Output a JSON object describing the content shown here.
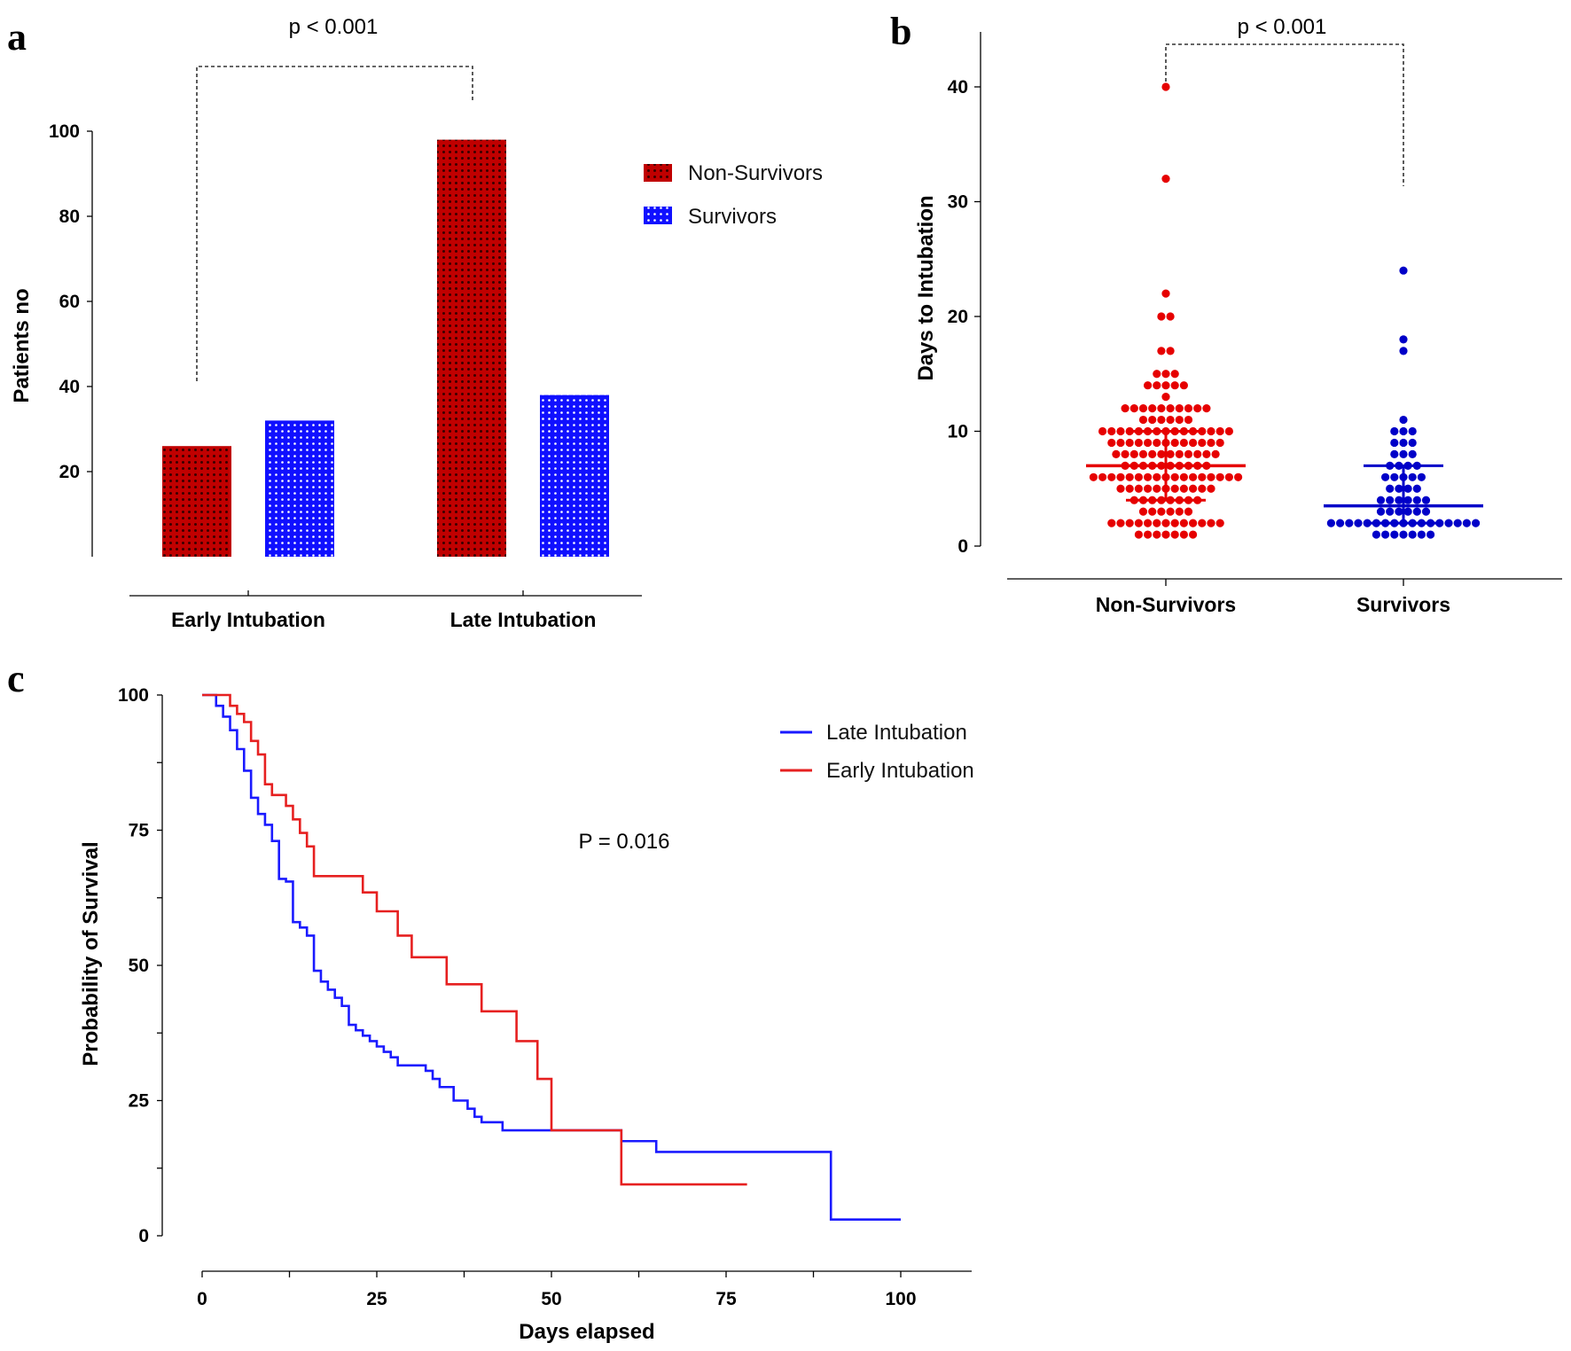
{
  "panels": {
    "a": {
      "label": "a"
    },
    "b": {
      "label": "b"
    },
    "c": {
      "label": "c"
    }
  },
  "chart_data": [
    {
      "panel": "a",
      "type": "bar",
      "title": "",
      "xlabel": "",
      "ylabel": "Patients no",
      "categories": [
        "Early Intubation",
        "Late Intubation"
      ],
      "series": [
        {
          "name": "Non-Survivors",
          "values": [
            26,
            98
          ],
          "color": "#c00000",
          "pattern": "dark-dots"
        },
        {
          "name": "Survivors",
          "values": [
            32,
            38
          ],
          "color": "#1010ff",
          "pattern": "light-dots"
        }
      ],
      "ylim": [
        0,
        100
      ],
      "yticks": [
        "20",
        "40",
        "60",
        "80",
        "100"
      ],
      "legend_position": "top-right",
      "annotation": "p < 0.001",
      "grid": false
    },
    {
      "panel": "b",
      "type": "scatter",
      "title": "",
      "xlabel": "",
      "ylabel": "Days to Intubation",
      "categories": [
        "Non-Survivors",
        "Survivors"
      ],
      "ylim": [
        0,
        45
      ],
      "yticks": [
        "0",
        "10",
        "20",
        "30",
        "40"
      ],
      "annotation": "p < 0.001",
      "grid": false,
      "series": [
        {
          "name": "Non-Survivors",
          "color": "#e60000",
          "median": 7,
          "iqr": [
            4,
            10
          ],
          "points": [
            {
              "y": 1,
              "n": 7
            },
            {
              "y": 2,
              "n": 13
            },
            {
              "y": 3,
              "n": 6
            },
            {
              "y": 4,
              "n": 8
            },
            {
              "y": 5,
              "n": 11
            },
            {
              "y": 6,
              "n": 17
            },
            {
              "y": 7,
              "n": 10
            },
            {
              "y": 8,
              "n": 12
            },
            {
              "y": 9,
              "n": 13
            },
            {
              "y": 10,
              "n": 15
            },
            {
              "y": 11,
              "n": 6
            },
            {
              "y": 12,
              "n": 10
            },
            {
              "y": 13,
              "n": 1
            },
            {
              "y": 14,
              "n": 5
            },
            {
              "y": 15,
              "n": 3
            },
            {
              "y": 17,
              "n": 2
            },
            {
              "y": 20,
              "n": 2
            },
            {
              "y": 22,
              "n": 1
            },
            {
              "y": 32,
              "n": 1
            },
            {
              "y": 40,
              "n": 1
            }
          ]
        },
        {
          "name": "Survivors",
          "color": "#0000c8",
          "median": 3.5,
          "iqr": [
            2,
            7
          ],
          "points": [
            {
              "y": 1,
              "n": 7
            },
            {
              "y": 2,
              "n": 17
            },
            {
              "y": 3,
              "n": 6
            },
            {
              "y": 4,
              "n": 6
            },
            {
              "y": 5,
              "n": 4
            },
            {
              "y": 6,
              "n": 5
            },
            {
              "y": 7,
              "n": 4
            },
            {
              "y": 8,
              "n": 3
            },
            {
              "y": 9,
              "n": 3
            },
            {
              "y": 10,
              "n": 3
            },
            {
              "y": 11,
              "n": 1
            },
            {
              "y": 17,
              "n": 1
            },
            {
              "y": 18,
              "n": 1
            },
            {
              "y": 24,
              "n": 1
            }
          ]
        }
      ]
    },
    {
      "panel": "c",
      "type": "line",
      "title": "",
      "xlabel": "Days elapsed",
      "ylabel": "Probability of Survival",
      "xlim": [
        0,
        110
      ],
      "ylim": [
        0,
        100
      ],
      "xticks": [
        "0",
        "25",
        "50",
        "75",
        "100"
      ],
      "yticks": [
        "0",
        "25",
        "50",
        "75",
        "100"
      ],
      "annotation": "P = 0.016",
      "legend_position": "top-right",
      "grid": false,
      "series": [
        {
          "name": "Late Intubation",
          "color": "#1a1aff",
          "step": [
            [
              0,
              100
            ],
            [
              2,
              98
            ],
            [
              3,
              96
            ],
            [
              4,
              93.5
            ],
            [
              5,
              90
            ],
            [
              6,
              86
            ],
            [
              7,
              81
            ],
            [
              8,
              78
            ],
            [
              9,
              76
            ],
            [
              10,
              73
            ],
            [
              11,
              66
            ],
            [
              12,
              65.5
            ],
            [
              13,
              58
            ],
            [
              14,
              57
            ],
            [
              15,
              55.5
            ],
            [
              16,
              49
            ],
            [
              17,
              47
            ],
            [
              18,
              45.5
            ],
            [
              19,
              44
            ],
            [
              20,
              42.5
            ],
            [
              21,
              39
            ],
            [
              22,
              38
            ],
            [
              23,
              37
            ],
            [
              24,
              36
            ],
            [
              25,
              35
            ],
            [
              26,
              34
            ],
            [
              27,
              33
            ],
            [
              28,
              31.5
            ],
            [
              32,
              30.5
            ],
            [
              33,
              29
            ],
            [
              34,
              27.5
            ],
            [
              36,
              25
            ],
            [
              38,
              23.5
            ],
            [
              39,
              22
            ],
            [
              40,
              21
            ],
            [
              43,
              19.5
            ],
            [
              60,
              17.5
            ],
            [
              65,
              15.5
            ],
            [
              90,
              3
            ],
            [
              100,
              3
            ]
          ]
        },
        {
          "name": "Early Intubation",
          "color": "#e62020",
          "step": [
            [
              0,
              100
            ],
            [
              3,
              100
            ],
            [
              4,
              98
            ],
            [
              5,
              96.5
            ],
            [
              6,
              95
            ],
            [
              7,
              91.5
            ],
            [
              8,
              89
            ],
            [
              9,
              83.5
            ],
            [
              10,
              81.5
            ],
            [
              12,
              79.5
            ],
            [
              13,
              77
            ],
            [
              14,
              74.5
            ],
            [
              15,
              72
            ],
            [
              16,
              66.5
            ],
            [
              23,
              63.5
            ],
            [
              25,
              60
            ],
            [
              28,
              55.5
            ],
            [
              30,
              51.5
            ],
            [
              35,
              46.5
            ],
            [
              40,
              41.5
            ],
            [
              45,
              36
            ],
            [
              48,
              29
            ],
            [
              50,
              19.5
            ],
            [
              60,
              9.5
            ],
            [
              78,
              9.5
            ]
          ]
        }
      ]
    }
  ]
}
